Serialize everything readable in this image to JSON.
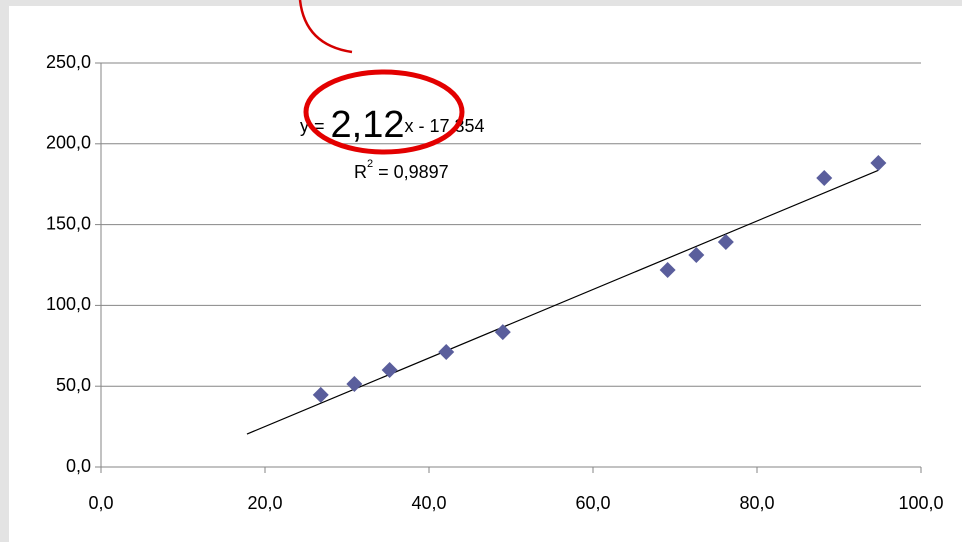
{
  "chart_data": {
    "type": "scatter",
    "x": [
      26.8,
      30.9,
      35.2,
      42.1,
      49.0,
      69.1,
      72.6,
      76.2,
      88.2,
      94.8
    ],
    "values": [
      44.6,
      51.4,
      60.0,
      71.2,
      83.5,
      121.9,
      131.2,
      139.2,
      178.8,
      188.1
    ],
    "color": "#5a5e9c",
    "xlim": [
      0,
      100
    ],
    "xticks": [
      {
        "value": 0,
        "label": "0,0"
      },
      {
        "value": 20,
        "label": "20,0"
      },
      {
        "value": 40,
        "label": "40,0"
      },
      {
        "value": 60,
        "label": "60,0"
      },
      {
        "value": 80,
        "label": "80,0"
      },
      {
        "value": 100,
        "label": "100,0"
      }
    ],
    "ylim": [
      0,
      250
    ],
    "yticks": [
      {
        "value": 0,
        "label": "0,0"
      },
      {
        "value": 50,
        "label": "50,0"
      },
      {
        "value": 100,
        "label": "100,0"
      },
      {
        "value": 150,
        "label": "150,0"
      },
      {
        "value": 200,
        "label": "200,0"
      },
      {
        "value": 250,
        "label": "250,0"
      }
    ],
    "grid": true,
    "trendline": {
      "x": [
        17.8,
        94.8
      ],
      "values": [
        20.4,
        183.6
      ],
      "color": "#000000"
    },
    "equation": {
      "prefix": "y =",
      "slope": "2,12",
      "suffix": "x - 17,354"
    },
    "r_squared": {
      "symbol": "R",
      "exponent": "2",
      "text": " = 0,9897"
    }
  }
}
